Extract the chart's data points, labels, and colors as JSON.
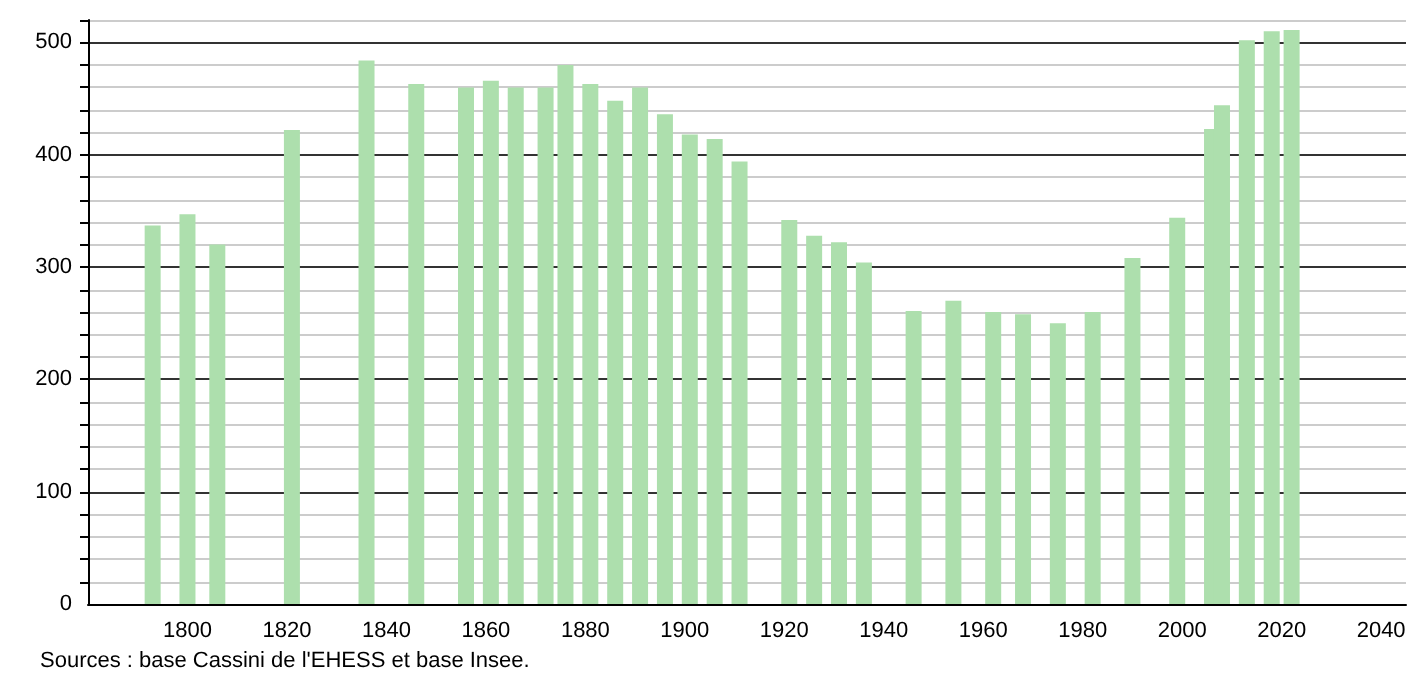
{
  "chart_data": {
    "type": "bar",
    "x": [
      1793,
      1800,
      1806,
      1821,
      1836,
      1846,
      1856,
      1861,
      1866,
      1872,
      1876,
      1881,
      1886,
      1891,
      1896,
      1901,
      1906,
      1911,
      1921,
      1926,
      1931,
      1936,
      1946,
      1954,
      1962,
      1968,
      1975,
      1982,
      1990,
      1999,
      2006,
      2008,
      2013,
      2018,
      2022
    ],
    "series": [
      {
        "color": "#addfad",
        "values": [
          337,
          347,
          320,
          422,
          484,
          463,
          460,
          466,
          460,
          460,
          480,
          463,
          448,
          460,
          436,
          418,
          414,
          394,
          342,
          328,
          322,
          304,
          261,
          270,
          260,
          258,
          250,
          260,
          308,
          344,
          423,
          444,
          502,
          510,
          511
        ]
      }
    ],
    "xlim": [
      1780,
      2045
    ],
    "xticks": [
      1800,
      1820,
      1840,
      1860,
      1880,
      1900,
      1920,
      1940,
      1960,
      1980,
      2000,
      2020,
      2040
    ],
    "ylim": [
      0,
      520
    ],
    "yticks": [
      0,
      {
        "value": 20,
        "label": null
      },
      {
        "value": 40,
        "label": null
      },
      {
        "value": 60,
        "label": null
      },
      {
        "value": 80,
        "label": null
      },
      100,
      {
        "value": 120,
        "label": null
      },
      {
        "value": 140,
        "label": null
      },
      {
        "value": 160,
        "label": null
      },
      {
        "value": 180,
        "label": null
      },
      200,
      {
        "value": 220,
        "label": null
      },
      {
        "value": 240,
        "label": null
      },
      {
        "value": 260,
        "label": null
      },
      {
        "value": 280,
        "label": null
      },
      300,
      {
        "value": 320,
        "label": null
      },
      {
        "value": 340,
        "label": null
      },
      {
        "value": 360,
        "label": null
      },
      {
        "value": 380,
        "label": null
      },
      400,
      {
        "value": 420,
        "label": null
      },
      {
        "value": 440,
        "label": null
      },
      {
        "value": 460,
        "label": null
      },
      {
        "value": 480,
        "label": null
      },
      500,
      {
        "value": 520,
        "label": null
      }
    ],
    "grid": "y",
    "annotations": [
      "Sources : base Cassini de l'EHESS et base Insee."
    ]
  }
}
